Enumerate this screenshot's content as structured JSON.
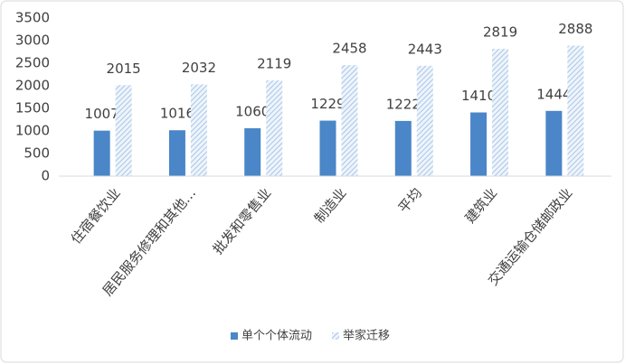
{
  "chart_data": {
    "type": "bar",
    "categories": [
      "住宿餐饮业",
      "居民服务修理和其他…",
      "批发和零售业",
      "制造业",
      "平均",
      "建筑业",
      "交通运输仓储邮政业"
    ],
    "series": [
      {
        "name": "单个个体流动",
        "color": "#4a86c8",
        "values": [
          1007,
          1016,
          1060,
          1229,
          1222,
          1410,
          1444
        ]
      },
      {
        "name": "举家迁移",
        "color": "#a9c6e8",
        "pattern": "hatch",
        "values": [
          2015,
          2032,
          2119,
          2458,
          2443,
          2819,
          2888
        ]
      }
    ],
    "ylim": [
      0,
      3500
    ],
    "yticks": [
      0,
      500,
      1000,
      1500,
      2000,
      2500,
      3000,
      3500
    ],
    "grid": false,
    "legend": "bottom"
  }
}
